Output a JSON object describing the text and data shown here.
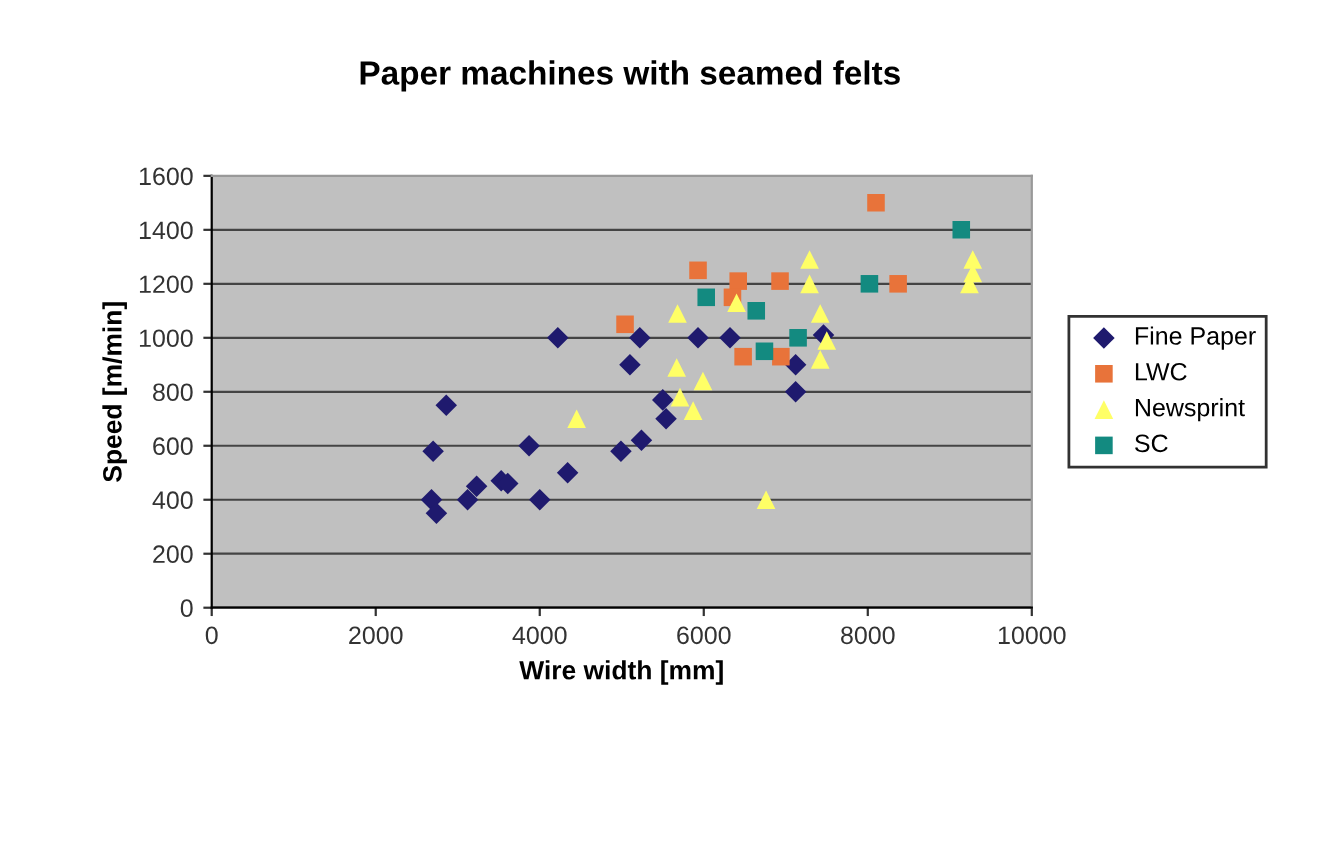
{
  "chart_data": {
    "type": "scatter",
    "title": "Paper machines with seamed felts",
    "xlabel": "Wire width [mm]",
    "ylabel": "Speed [m/min]",
    "xlim": [
      0,
      10000
    ],
    "xticks": [
      0,
      2000,
      4000,
      6000,
      8000,
      10000
    ],
    "ylim": [
      0,
      1600
    ],
    "yticks": [
      0,
      200,
      400,
      600,
      800,
      1000,
      1200,
      1400,
      1600
    ],
    "grid": "y",
    "legend": "right",
    "series": [
      {
        "name": "Fine Paper",
        "color": "#1f1a6e",
        "marker": "diamond",
        "x": [
          2700,
          2860,
          2680,
          2740,
          3120,
          3230,
          3530,
          3610,
          3870,
          4000,
          4220,
          4340,
          4990,
          5240,
          5220,
          5100,
          5540,
          5500,
          5930,
          6320,
          7120,
          7120,
          7460
        ],
        "values": [
          580,
          750,
          400,
          350,
          400,
          450,
          470,
          460,
          600,
          400,
          1000,
          500,
          580,
          620,
          1000,
          900,
          700,
          770,
          1000,
          1000,
          900,
          800,
          1010
        ]
      },
      {
        "name": "LWC",
        "color": "#e8733a",
        "marker": "square",
        "x": [
          8100,
          5930,
          6420,
          6930,
          8370,
          5040,
          6480,
          6940,
          6350
        ],
        "values": [
          1500,
          1250,
          1210,
          1210,
          1200,
          1050,
          930,
          930,
          1150
        ]
      },
      {
        "name": "Newsprint",
        "color": "#ffff66",
        "marker": "triangle",
        "x": [
          4450,
          5680,
          7290,
          7290,
          7420,
          7500,
          7420,
          5670,
          5990,
          5710,
          5870,
          6760,
          9280,
          9240,
          9280,
          6400
        ],
        "values": [
          700,
          1090,
          1290,
          1200,
          1090,
          990,
          920,
          890,
          840,
          780,
          730,
          400,
          1290,
          1200,
          1240,
          1130
        ]
      },
      {
        "name": "SC",
        "color": "#138a80",
        "marker": "square",
        "x": [
          9140,
          6030,
          6640,
          6740,
          7150,
          8020
        ],
        "values": [
          1400,
          1150,
          1100,
          950,
          1000,
          1200
        ]
      }
    ]
  }
}
